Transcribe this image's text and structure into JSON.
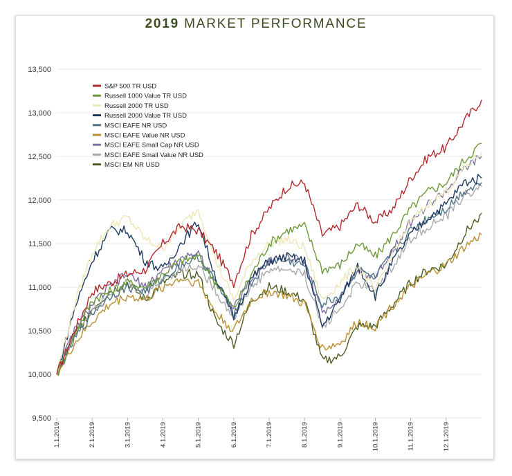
{
  "chart_data": {
    "type": "line",
    "title_year": "2019",
    "title_rest": "MARKET PERFORMANCE",
    "ylim": [
      9500,
      13500
    ],
    "yticks": [
      9500,
      10000,
      10500,
      11000,
      11500,
      12000,
      12500,
      13000,
      13500
    ],
    "ytick_labels": [
      "9,500",
      "10,000",
      "10,500",
      "11,000",
      "11,500",
      "12,000",
      "12,500",
      "13,000",
      "13,500"
    ],
    "xticks": [
      "1.1.2019",
      "2.1.2019",
      "3.1.2019",
      "4.1.2019",
      "5.1.2019",
      "6.1.2019",
      "7.1.2019",
      "8.1.2019",
      "9.1.2019",
      "10.1.2019",
      "11.1.2019",
      "12.1.2019"
    ],
    "x": [
      "1.1.2019",
      "1.15.2019",
      "2.1.2019",
      "2.15.2019",
      "3.1.2019",
      "3.15.2019",
      "4.1.2019",
      "4.15.2019",
      "5.1.2019",
      "5.15.2019",
      "6.1.2019",
      "6.15.2019",
      "7.1.2019",
      "7.15.2019",
      "8.1.2019",
      "8.15.2019",
      "9.1.2019",
      "9.15.2019",
      "10.1.2019",
      "10.15.2019",
      "11.1.2019",
      "11.15.2019",
      "12.1.2019",
      "12.15.2019",
      "12.31.2019"
    ],
    "grid": "horizontal",
    "legend_position": "top-left",
    "series": [
      {
        "name": "S&P 500 TR USD",
        "color": "#b3282d",
        "values": [
          10000,
          10500,
          10950,
          11050,
          11150,
          11200,
          11500,
          11700,
          11650,
          11400,
          11050,
          11600,
          11900,
          12150,
          12200,
          11600,
          11700,
          11950,
          11750,
          11900,
          12250,
          12500,
          12600,
          12900,
          13150
        ]
      },
      {
        "name": "Russell 1000 Value TR USD",
        "color": "#6b9a3a",
        "values": [
          10000,
          10450,
          10850,
          10950,
          11050,
          11000,
          11150,
          11300,
          11350,
          11050,
          10750,
          11150,
          11500,
          11650,
          11700,
          11200,
          11250,
          11500,
          11350,
          11600,
          11900,
          12100,
          12200,
          12450,
          12650
        ]
      },
      {
        "name": "Russell 2000 TR USD",
        "color": "#ede6b8",
        "values": [
          10000,
          10800,
          11400,
          11700,
          11800,
          11550,
          11450,
          11700,
          11900,
          11300,
          10850,
          11300,
          11500,
          11550,
          11450,
          10850,
          11050,
          11250,
          10950,
          11400,
          11750,
          11950,
          12100,
          12350,
          12550
        ]
      },
      {
        "name": "Russell 2000 Value TR USD",
        "color": "#1e3a5f",
        "values": [
          10000,
          10750,
          11300,
          11650,
          11650,
          11300,
          11200,
          11500,
          11750,
          11100,
          10650,
          11100,
          11300,
          11350,
          11300,
          10550,
          10850,
          11250,
          10900,
          11300,
          11600,
          11800,
          11950,
          12200,
          12250
        ]
      },
      {
        "name": "MSCI EAFE NR USD",
        "color": "#4f7285",
        "values": [
          10000,
          10400,
          10700,
          10900,
          11000,
          10950,
          11100,
          11250,
          11350,
          11050,
          10700,
          11050,
          11300,
          11300,
          11250,
          10800,
          10900,
          11200,
          11100,
          11400,
          11650,
          11800,
          11900,
          12100,
          12200
        ]
      },
      {
        "name": "MSCI EAFE Value NR USD",
        "color": "#b88f32",
        "values": [
          10000,
          10350,
          10600,
          10800,
          10900,
          10850,
          11000,
          11100,
          11050,
          10700,
          10500,
          10850,
          10950,
          10900,
          10800,
          10300,
          10350,
          10600,
          10550,
          10800,
          11000,
          11150,
          11250,
          11450,
          11600
        ]
      },
      {
        "name": "MSCI EAFE Small Cap NR USD",
        "color": "#7d6ea3",
        "values": [
          10000,
          10500,
          10800,
          11000,
          11150,
          11000,
          11200,
          11300,
          11400,
          11050,
          10750,
          11100,
          11300,
          11350,
          11300,
          10700,
          10900,
          11200,
          11100,
          11450,
          11750,
          11950,
          12100,
          12350,
          12500
        ]
      },
      {
        "name": "MSCI EAFE Small Value NR USD",
        "color": "#a9a9a9",
        "values": [
          10000,
          10450,
          10750,
          10950,
          11050,
          10900,
          11100,
          11200,
          11250,
          10950,
          10650,
          11000,
          11200,
          11200,
          11150,
          10550,
          10750,
          11050,
          10950,
          11250,
          11550,
          11700,
          11800,
          12050,
          12150
        ]
      },
      {
        "name": "MSCI EM NR USD",
        "color": "#4a5d23",
        "values": [
          10000,
          10450,
          10750,
          10950,
          11050,
          10850,
          11050,
          11150,
          11150,
          10600,
          10350,
          10850,
          11000,
          10950,
          10850,
          10150,
          10200,
          10550,
          10550,
          10800,
          11050,
          11200,
          11250,
          11600,
          11850
        ]
      }
    ]
  }
}
